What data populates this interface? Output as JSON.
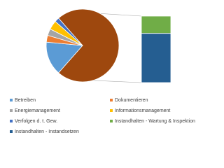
{
  "chart_data": {
    "type": "bar-of-pie",
    "series": [
      {
        "name": "Betreiben",
        "color": "#5b9bd5",
        "value": 15
      },
      {
        "name": "Dokumentieren",
        "color": "#ed7d31",
        "value": 3
      },
      {
        "name": "Energiemanagement",
        "color": "#a5a5a5",
        "value": 3
      },
      {
        "name": "Informationsmanagement",
        "color": "#ffc000",
        "value": 4
      },
      {
        "name": "Verfolgen d. t. Gew.",
        "color": "#4472c4",
        "value": 2
      },
      {
        "name": "Instandhalten - Wartung & Inspektion",
        "color": "#70ad47",
        "value": 19
      },
      {
        "name": "Instandhalten - Instandsetzen",
        "color": "#255e91",
        "value": 54
      }
    ],
    "bar_count": 2,
    "other_color": "#9e480e"
  }
}
